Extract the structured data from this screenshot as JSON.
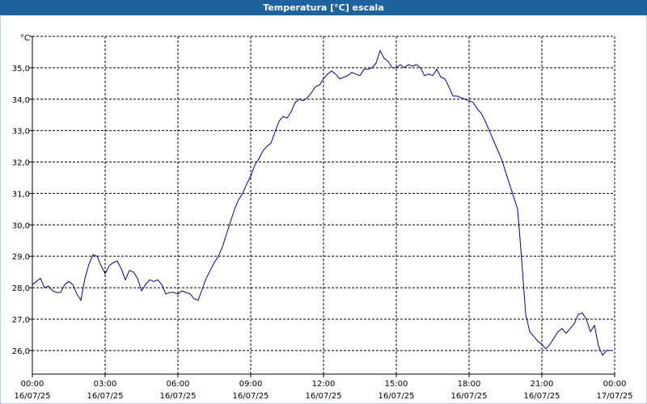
{
  "chart_data": {
    "type": "line",
    "title": "Temperatura [°C] escala",
    "y_unit": "°C",
    "color": "#00008b",
    "grid": true,
    "x": [
      0,
      10,
      20,
      30,
      40,
      50,
      60,
      70,
      80,
      90,
      100,
      110,
      120,
      130,
      140,
      150,
      160,
      170,
      180,
      190,
      200,
      210,
      220,
      230,
      240,
      250,
      260,
      270,
      280,
      290,
      300,
      310,
      320,
      330,
      340,
      350,
      360,
      370,
      380,
      390,
      400,
      410,
      420,
      430,
      440,
      450,
      460,
      470,
      480,
      490,
      500,
      510,
      520,
      530,
      540,
      550,
      560,
      570,
      580,
      590,
      600,
      610,
      620,
      630,
      640,
      650,
      660,
      670,
      680,
      690,
      700,
      710,
      720,
      730,
      740,
      750,
      760,
      770,
      780,
      790,
      800,
      810,
      820,
      830,
      840,
      850,
      860,
      870,
      880,
      890,
      900,
      910,
      920,
      930,
      940,
      950,
      960,
      970,
      980,
      990,
      1000,
      1010,
      1020,
      1030,
      1040,
      1050,
      1060,
      1070,
      1080,
      1090,
      1100,
      1110,
      1120,
      1130,
      1140,
      1150,
      1160,
      1170,
      1180,
      1190,
      1200,
      1210,
      1220,
      1230,
      1240,
      1250,
      1260,
      1270,
      1280,
      1290,
      1300,
      1310,
      1320,
      1330,
      1340,
      1350,
      1360,
      1370,
      1380,
      1390,
      1400,
      1410,
      1420,
      1430
    ],
    "values": [
      28.1,
      28.2,
      28.3,
      28.0,
      28.05,
      27.9,
      27.85,
      27.85,
      28.1,
      28.2,
      28.1,
      27.8,
      27.6,
      28.3,
      28.75,
      29.05,
      29.0,
      28.7,
      28.45,
      28.7,
      28.8,
      28.85,
      28.6,
      28.25,
      28.55,
      28.5,
      28.3,
      27.9,
      28.1,
      28.25,
      28.2,
      28.25,
      28.1,
      27.8,
      27.85,
      27.85,
      27.8,
      27.9,
      27.85,
      27.8,
      27.65,
      27.6,
      27.95,
      28.3,
      28.55,
      28.8,
      29.0,
      29.3,
      29.7,
      30.1,
      30.5,
      30.8,
      31.0,
      31.3,
      31.55,
      31.9,
      32.1,
      32.35,
      32.5,
      32.6,
      32.95,
      33.3,
      33.45,
      33.4,
      33.6,
      33.9,
      34.0,
      33.95,
      34.05,
      34.2,
      34.4,
      34.45,
      34.65,
      34.8,
      34.9,
      34.8,
      34.65,
      34.7,
      34.75,
      34.85,
      34.8,
      34.75,
      34.95,
      34.95,
      35.0,
      35.15,
      35.55,
      35.3,
      35.2,
      35.0,
      35.0,
      35.1,
      35.0,
      35.1,
      35.05,
      35.1,
      35.0,
      34.75,
      34.8,
      34.75,
      34.95,
      34.7,
      34.65,
      34.4,
      34.1,
      34.1,
      34.05,
      34.0,
      33.95,
      33.9,
      33.7,
      33.55,
      33.3,
      33.0,
      32.7,
      32.4,
      32.1,
      31.7,
      31.3,
      30.9,
      30.5,
      28.9,
      27.15,
      26.6,
      26.45,
      26.3,
      26.2,
      26.05,
      26.2,
      26.4,
      26.6,
      26.7,
      26.55,
      26.7,
      26.85,
      27.15,
      27.2,
      27.0,
      26.6,
      26.8,
      26.15,
      25.85,
      26.0,
      26.0
    ],
    "xlim": [
      0,
      1440
    ],
    "xticks": [
      {
        "value": 0,
        "label": "00:00",
        "date": "16/07/25"
      },
      {
        "value": 180,
        "label": "03:00",
        "date": "16/07/25"
      },
      {
        "value": 360,
        "label": "06:00",
        "date": "16/07/25"
      },
      {
        "value": 540,
        "label": "09:00",
        "date": "16/07/25"
      },
      {
        "value": 720,
        "label": "12:00",
        "date": "16/07/25"
      },
      {
        "value": 900,
        "label": "15:00",
        "date": "16/07/25"
      },
      {
        "value": 1080,
        "label": "18:00",
        "date": "16/07/25"
      },
      {
        "value": 1260,
        "label": "21:00",
        "date": "16/07/25"
      },
      {
        "value": 1440,
        "label": "00:00",
        "date": "17/07/25"
      }
    ],
    "ylim": [
      25.25,
      36.0
    ],
    "yticks": [
      {
        "value": 26,
        "label": "26,0"
      },
      {
        "value": 27,
        "label": "27,0"
      },
      {
        "value": 28,
        "label": "28,0"
      },
      {
        "value": 29,
        "label": "29,0"
      },
      {
        "value": 30,
        "label": "30,0"
      },
      {
        "value": 31,
        "label": "31,0"
      },
      {
        "value": 32,
        "label": "32,0"
      },
      {
        "value": 33,
        "label": "33,0"
      },
      {
        "value": 34,
        "label": "34,0"
      },
      {
        "value": 35,
        "label": "35,0"
      },
      {
        "value": 36,
        "label": ""
      }
    ]
  }
}
